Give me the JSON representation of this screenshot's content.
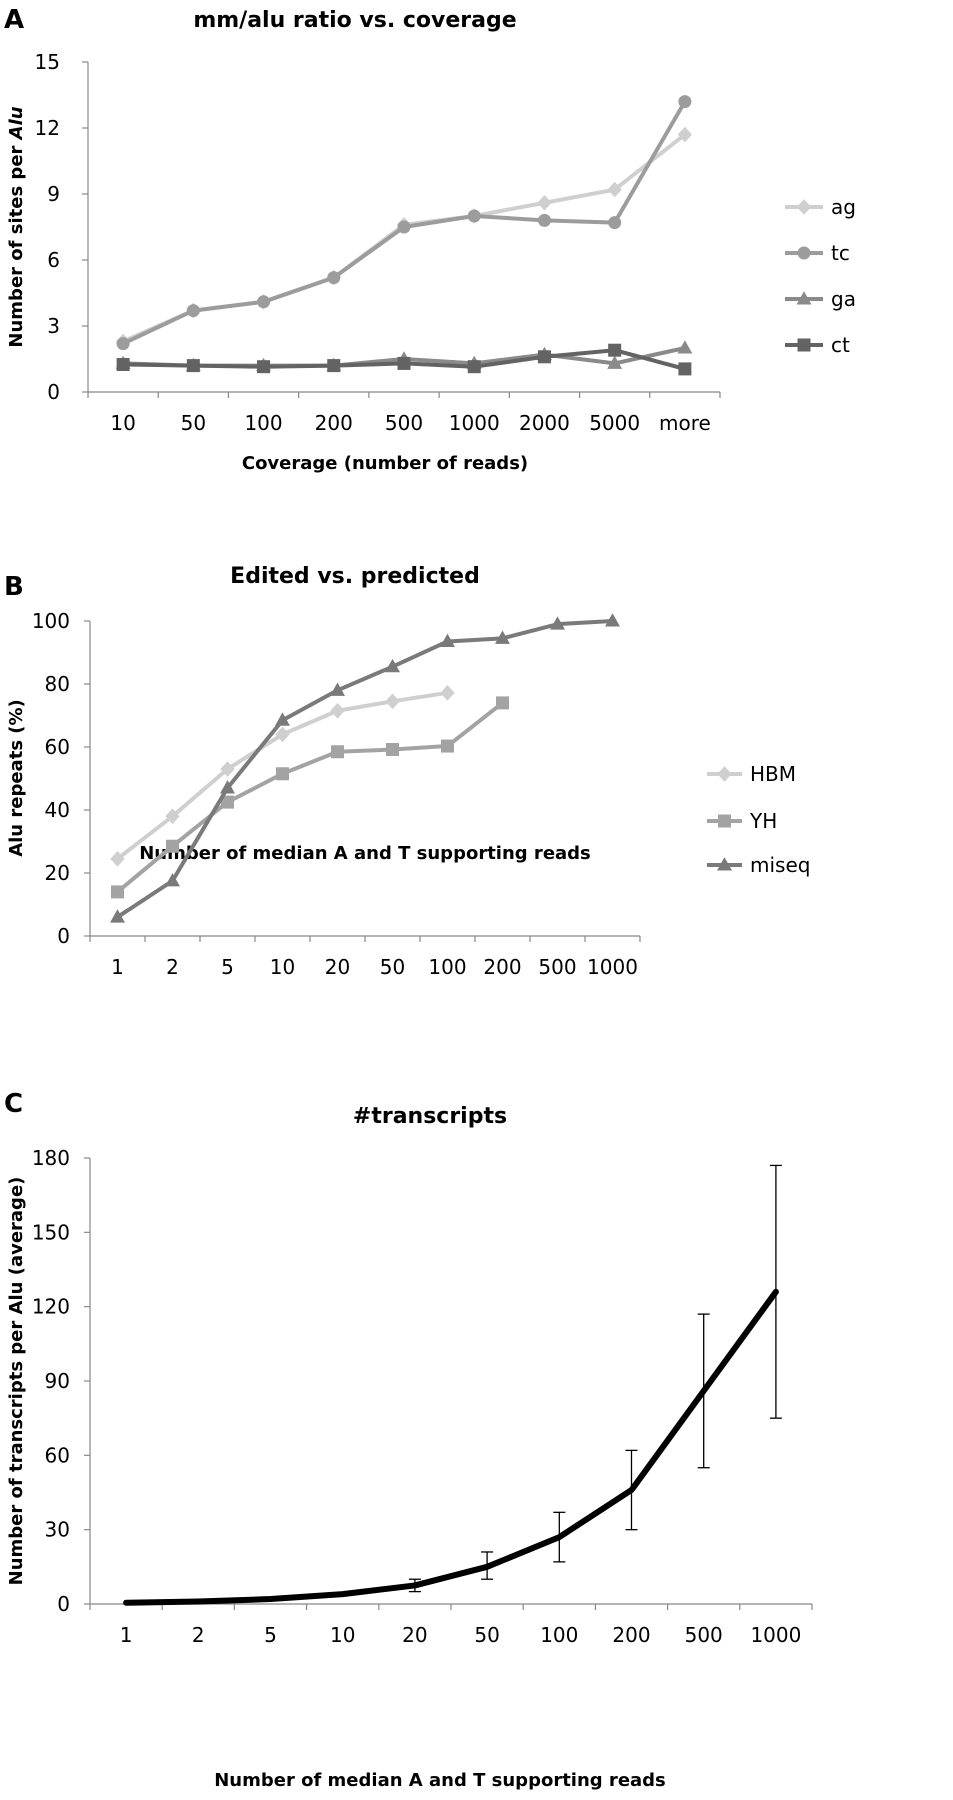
{
  "chart_data": [
    {
      "panel": "A",
      "type": "line",
      "title": "mm/alu ratio vs. coverage",
      "xlabel": "Coverage (number of reads)",
      "ylabel_prefix": "Number of sites per ",
      "ylabel_italic": "Alu",
      "categories": [
        "10",
        "50",
        "100",
        "200",
        "500",
        "1000",
        "2000",
        "5000",
        "more"
      ],
      "ylim": [
        0,
        15
      ],
      "yticks": [
        0,
        3,
        6,
        9,
        12,
        15
      ],
      "grid": false,
      "legend_position": "right",
      "series": [
        {
          "name": "ag",
          "marker": "diamond",
          "color": "#cfcfcf",
          "values": [
            2.3,
            3.7,
            4.1,
            5.2,
            7.6,
            8.0,
            8.6,
            9.2,
            11.7
          ]
        },
        {
          "name": "tc",
          "marker": "circle",
          "color": "#9c9c9c",
          "values": [
            2.2,
            3.7,
            4.1,
            5.2,
            7.5,
            8.0,
            7.8,
            7.7,
            13.2
          ]
        },
        {
          "name": "ga",
          "marker": "triangle",
          "color": "#8a8a8a",
          "values": [
            1.3,
            1.2,
            1.2,
            1.2,
            1.5,
            1.3,
            1.7,
            1.3,
            2.0
          ]
        },
        {
          "name": "ct",
          "marker": "square",
          "color": "#636363",
          "values": [
            1.25,
            1.2,
            1.15,
            1.2,
            1.3,
            1.15,
            1.6,
            1.9,
            1.05
          ]
        }
      ]
    },
    {
      "panel": "B",
      "type": "line",
      "title": "Edited vs. predicted",
      "xlabel": "Number of median A and T supporting reads",
      "ylabel": "Alu repeats (%)",
      "categories": [
        "1",
        "2",
        "5",
        "10",
        "20",
        "50",
        "100",
        "200",
        "500",
        "1000"
      ],
      "ylim": [
        0,
        100
      ],
      "yticks": [
        0,
        20,
        40,
        60,
        80,
        100
      ],
      "grid": false,
      "legend_position": "right",
      "series": [
        {
          "name": "HBM",
          "marker": "diamond",
          "color": "#cfcfcf",
          "values": [
            24.5,
            38,
            53,
            64,
            71.5,
            74.5,
            77.2,
            null,
            null,
            null
          ]
        },
        {
          "name": "YH",
          "marker": "square",
          "color": "#a3a3a3",
          "values": [
            14,
            28.5,
            42.5,
            51.5,
            58.5,
            59.2,
            60.3,
            74,
            null,
            null
          ]
        },
        {
          "name": "miseq",
          "marker": "triangle",
          "color": "#7a7a7a",
          "values": [
            6,
            17.5,
            47,
            68.5,
            78,
            85.5,
            93.5,
            94.5,
            99,
            100
          ]
        }
      ]
    },
    {
      "panel": "C",
      "type": "line",
      "title": "#transcripts",
      "xlabel": "Number of median A and T supporting reads",
      "ylabel": "Number of transcripts per Alu (average)",
      "categories": [
        "1",
        "2",
        "5",
        "10",
        "20",
        "50",
        "100",
        "200",
        "500",
        "1000"
      ],
      "ylim": [
        0,
        180
      ],
      "yticks": [
        0,
        30,
        60,
        90,
        120,
        150,
        180
      ],
      "grid": false,
      "legend_position": "none",
      "series": [
        {
          "values": [
            0.5,
            1,
            2,
            4,
            7.5,
            15,
            27,
            46,
            86,
            126
          ],
          "error_low": [
            0.5,
            1,
            2,
            4,
            5,
            10,
            17,
            30,
            55,
            75
          ],
          "error_high": [
            0.5,
            1,
            2,
            4,
            10,
            21,
            37,
            62,
            117,
            177
          ],
          "color": "#000000"
        }
      ]
    }
  ]
}
